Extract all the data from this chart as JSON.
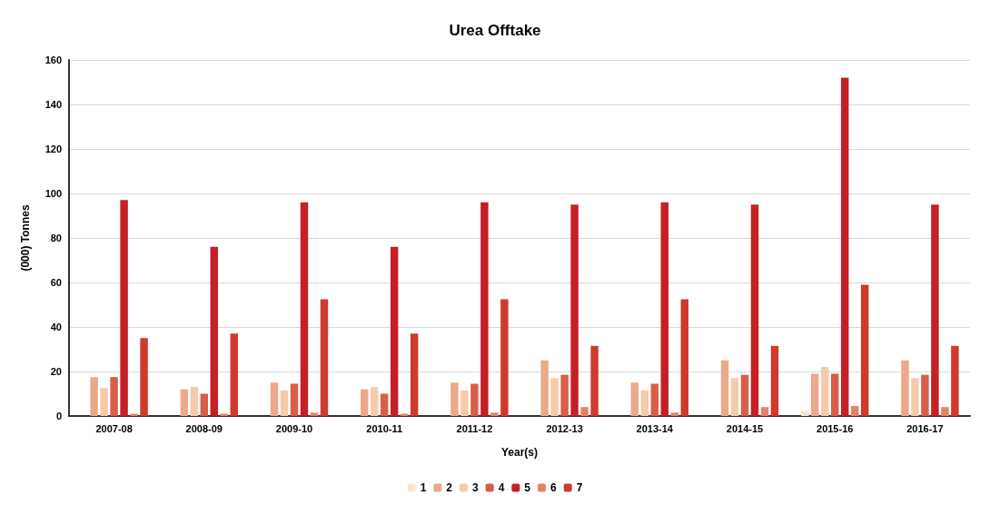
{
  "chart_data": {
    "type": "bar",
    "title": "Urea Offtake",
    "xlabel": "Year(s)",
    "ylabel": "(000) Tonnes",
    "categories": [
      "2007-08",
      "2008-09",
      "2009-10",
      "2010-11",
      "2011-12",
      "2012-13",
      "2013-14",
      "2014-15",
      "2015-16",
      "2016-17"
    ],
    "series": [
      {
        "name": "1",
        "color": "#fde4cf",
        "values": [
          null,
          null,
          null,
          null,
          null,
          null,
          null,
          null,
          2.5,
          null
        ]
      },
      {
        "name": "2",
        "color": "#eba98a",
        "values": [
          17.5,
          12,
          15,
          12,
          15,
          25,
          15,
          25,
          19,
          25
        ]
      },
      {
        "name": "3",
        "color": "#f5cbaa",
        "values": [
          12.5,
          13,
          11.5,
          13,
          11.5,
          17,
          11.5,
          17,
          22,
          17
        ]
      },
      {
        "name": "4",
        "color": "#d75f49",
        "values": [
          17.5,
          10,
          14.5,
          10,
          14.5,
          18.5,
          14.5,
          18.5,
          19,
          18.5
        ]
      },
      {
        "name": "5",
        "color": "#c42026",
        "values": [
          97,
          76,
          96,
          76,
          96,
          95,
          96,
          95,
          152,
          95
        ]
      },
      {
        "name": "6",
        "color": "#e3826a",
        "values": [
          1,
          1,
          1.5,
          1,
          1.5,
          4,
          1.5,
          4,
          4.5,
          4
        ]
      },
      {
        "name": "7",
        "color": "#cf3a2b",
        "values": [
          35,
          37,
          52.5,
          37,
          52.5,
          31.5,
          52.5,
          31.5,
          59,
          31.5
        ]
      }
    ],
    "ylim": [
      0,
      160
    ],
    "yticks": [
      0,
      20,
      40,
      60,
      80,
      100,
      120,
      140,
      160
    ],
    "grid": "y",
    "legend": "bottom"
  }
}
